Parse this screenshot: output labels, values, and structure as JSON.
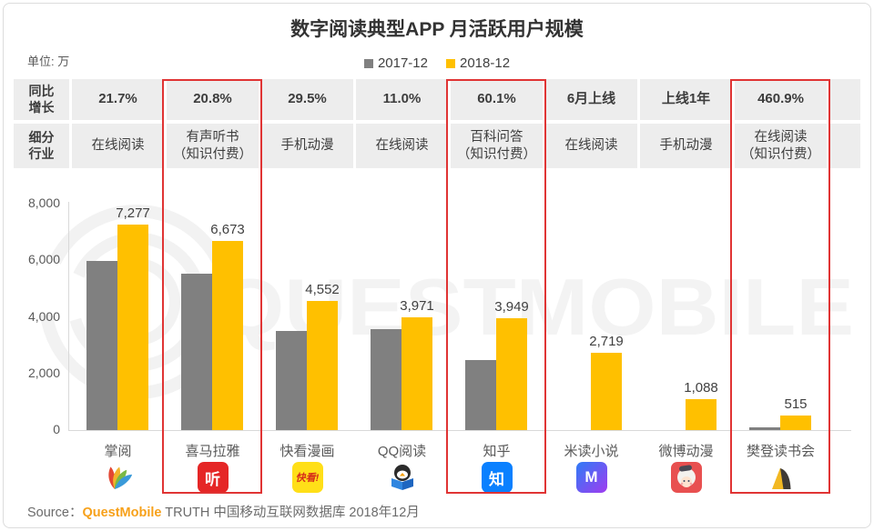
{
  "title": "数字阅读典型APP 月活跃用户规模",
  "unit_label": "单位: 万",
  "legend": [
    {
      "label": "2017-12",
      "color": "#808080"
    },
    {
      "label": "2018-12",
      "color": "#FFC000"
    }
  ],
  "table": {
    "row1_label_lines": [
      "同比",
      "增长"
    ],
    "row2_label_lines": [
      "细分",
      "行业"
    ],
    "columns": [
      {
        "growth": "21.7%",
        "industry_lines": [
          "在线阅读"
        ],
        "highlighted": false
      },
      {
        "growth": "20.8%",
        "industry_lines": [
          "有声听书",
          "（知识付费）"
        ],
        "highlighted": true
      },
      {
        "growth": "29.5%",
        "industry_lines": [
          "手机动漫"
        ],
        "highlighted": false
      },
      {
        "growth": "11.0%",
        "industry_lines": [
          "在线阅读"
        ],
        "highlighted": false
      },
      {
        "growth": "60.1%",
        "industry_lines": [
          "百科问答",
          "（知识付费）"
        ],
        "highlighted": true
      },
      {
        "growth": "6月上线",
        "industry_lines": [
          "在线阅读"
        ],
        "highlighted": false
      },
      {
        "growth": "上线1年",
        "industry_lines": [
          "手机动漫"
        ],
        "highlighted": false
      },
      {
        "growth": "460.9%",
        "industry_lines": [
          "在线阅读",
          "（知识付费）"
        ],
        "highlighted": true
      }
    ]
  },
  "chart_data": {
    "type": "bar",
    "title": "数字阅读典型APP 月活跃用户规模",
    "unit": "万",
    "categories": [
      "掌阅",
      "喜马拉雅",
      "快看漫画",
      "QQ阅读",
      "知乎",
      "米读小说",
      "微博动漫",
      "樊登读书会"
    ],
    "series": [
      {
        "name": "2017-12",
        "color": "#808080",
        "estimated": true,
        "values": [
          5980,
          5520,
          3515,
          3580,
          2467,
          null,
          null,
          92
        ]
      },
      {
        "name": "2018-12",
        "color": "#FFC000",
        "estimated": false,
        "values": [
          7277,
          6673,
          4552,
          3971,
          3949,
          2719,
          1088,
          515
        ]
      }
    ],
    "value_labels_2018": [
      "7,277",
      "6,673",
      "4,552",
      "3,971",
      "3,949",
      "2,719",
      "1,088",
      "515"
    ],
    "ylim": [
      0,
      8000
    ],
    "y_ticks": [
      {
        "v": 0,
        "label": "0"
      },
      {
        "v": 2000,
        "label": "2,000"
      },
      {
        "v": 4000,
        "label": "4,000"
      },
      {
        "v": 6000,
        "label": "6,000"
      },
      {
        "v": 8000,
        "label": "8,000"
      }
    ],
    "grid": false,
    "legend_position": "top-center"
  },
  "apps": [
    {
      "name": "掌阅",
      "icon": "ireader-icon"
    },
    {
      "name": "喜马拉雅",
      "icon": "ximalaya-icon",
      "glyph": "听"
    },
    {
      "name": "快看漫画",
      "icon": "kuaikan-icon",
      "glyph": "快看!"
    },
    {
      "name": "QQ阅读",
      "icon": "qq-reading-icon"
    },
    {
      "name": "知乎",
      "icon": "zhihu-icon",
      "glyph": "知"
    },
    {
      "name": "米读小说",
      "icon": "midu-icon",
      "glyph": "M"
    },
    {
      "name": "微博动漫",
      "icon": "weibo-comic-icon"
    },
    {
      "name": "樊登读书会",
      "icon": "fandeng-icon"
    }
  ],
  "watermark_text": "QUESTMOBILE",
  "source": {
    "prefix": "Source：",
    "brand": "QuestMobile",
    "suffix": " TRUTH 中国移动互联网数据库 2018年12月"
  },
  "colors": {
    "bar_2017": "#808080",
    "bar_2018": "#FFC000",
    "highlight_red": "#E03434",
    "cell_bg": "#EDEDED",
    "brand_orange": "#F7A11A"
  }
}
